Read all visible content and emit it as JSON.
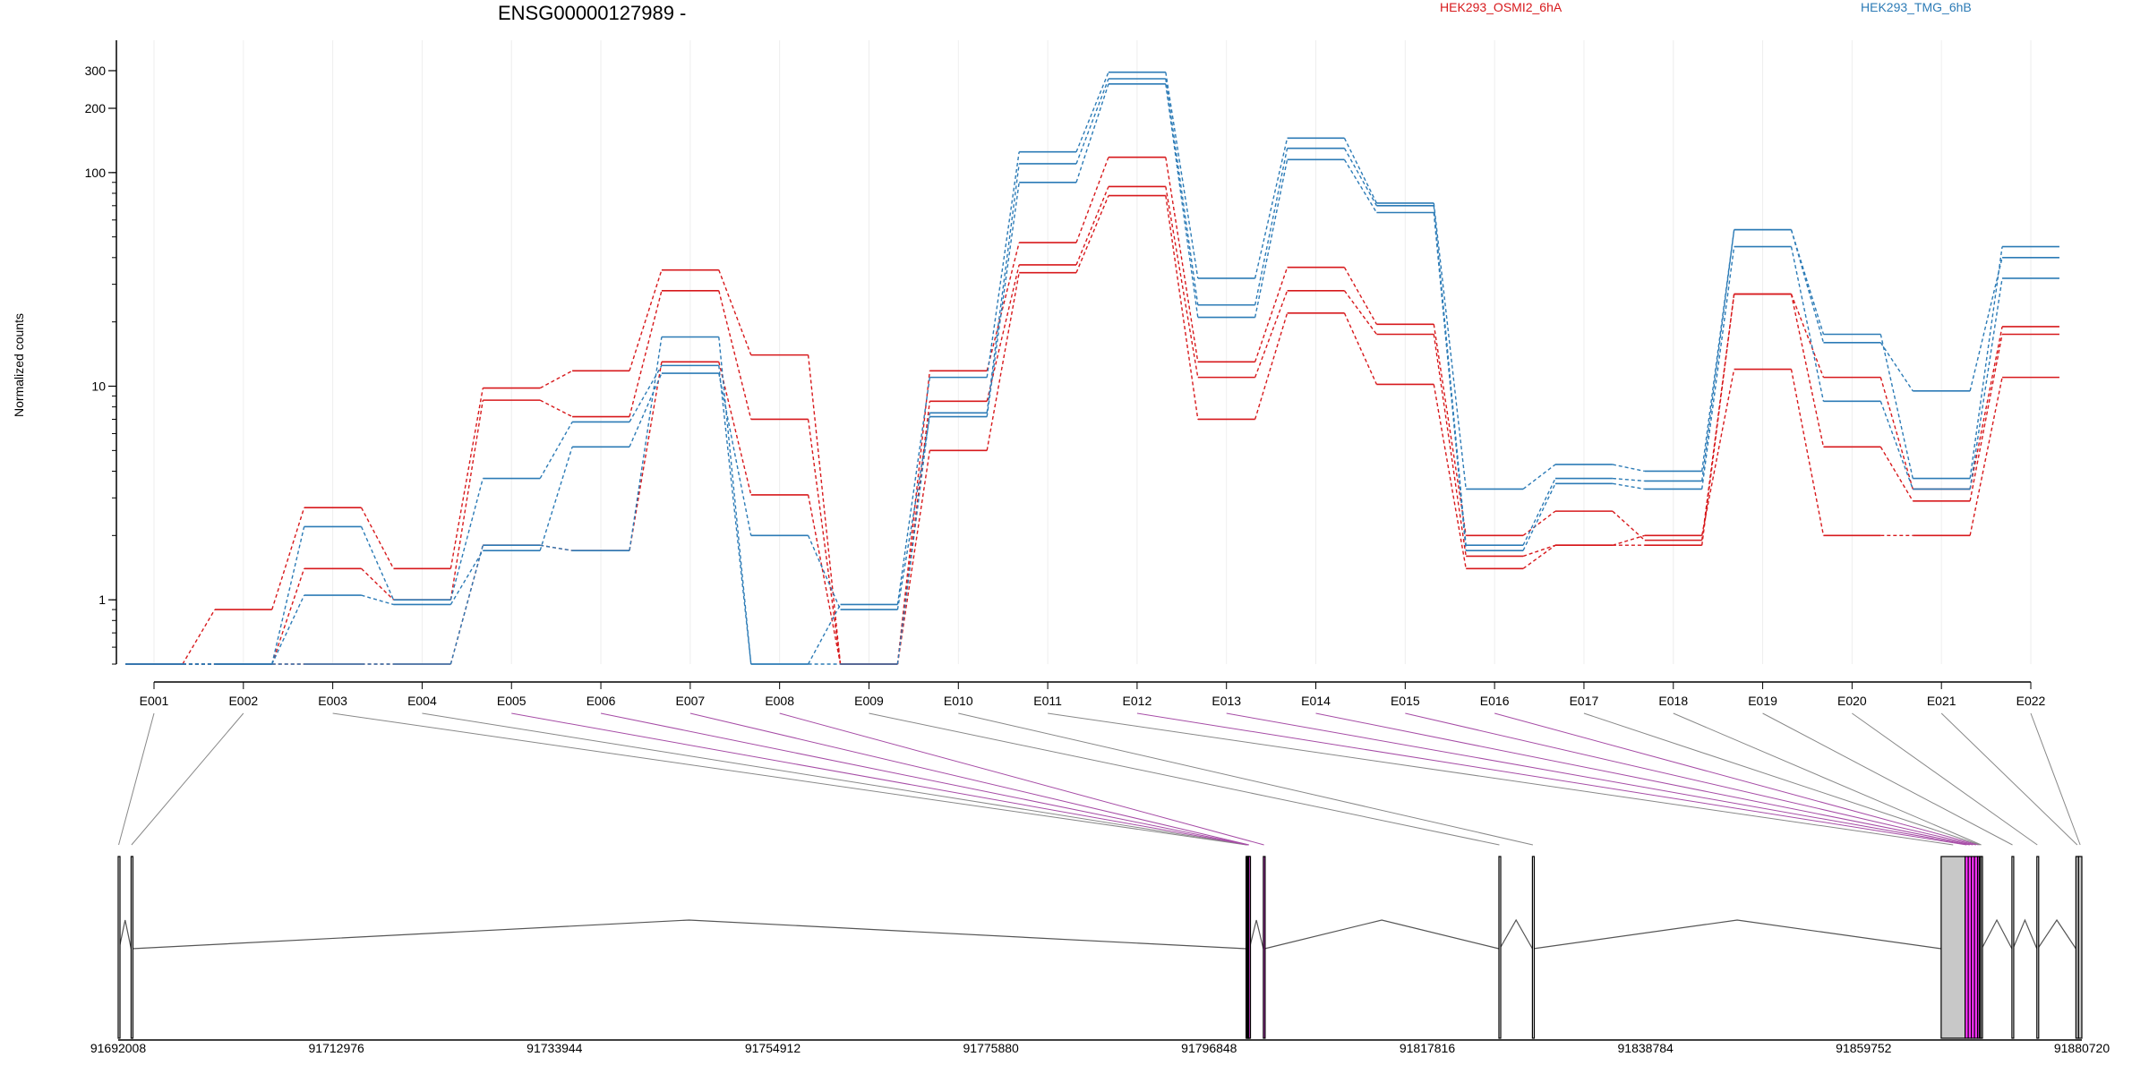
{
  "chart_data": {
    "type": "line",
    "title": "ENSG00000127989 -",
    "ylabel": "Normalized counts",
    "yscale": "log",
    "ylim": [
      0.5,
      350
    ],
    "yticks": [
      1,
      10,
      100,
      200,
      300
    ],
    "grid": "vertical",
    "legend_placement": "top-right",
    "categories": [
      "E001",
      "E002",
      "E003",
      "E004",
      "E005",
      "E006",
      "E007",
      "E008",
      "E009",
      "E010",
      "E011",
      "E012",
      "E013",
      "E014",
      "E015",
      "E016",
      "E017",
      "E018",
      "E019",
      "E020",
      "E021",
      "E022"
    ],
    "legend": [
      {
        "label": "HEK293_OSMI2_6hA",
        "color": "#d7191c"
      },
      {
        "label": "HEK293_TMG_6hB",
        "color": "#2c7bb6"
      }
    ],
    "series": [
      {
        "group": "HEK293_OSMI2_6hA",
        "color": "#d7191c",
        "values": [
          0.5,
          0.9,
          2.7,
          1.4,
          9.8,
          11.8,
          35,
          14,
          0.5,
          11.8,
          47,
          118,
          13,
          36,
          19.5,
          2.0,
          2.6,
          1.9,
          27,
          11,
          3.3,
          19
        ]
      },
      {
        "group": "HEK293_OSMI2_6hA",
        "color": "#d7191c",
        "values": [
          0.5,
          0.5,
          1.4,
          1.0,
          8.6,
          7.2,
          28,
          7.0,
          0.5,
          8.5,
          37,
          86,
          11,
          28,
          17.5,
          1.6,
          1.8,
          1.8,
          27,
          5.2,
          2.9,
          17.5
        ]
      },
      {
        "group": "HEK293_OSMI2_6hA",
        "color": "#d7191c",
        "values": [
          0.5,
          0.5,
          0.5,
          0.5,
          1.8,
          1.7,
          13,
          3.1,
          0.5,
          5.0,
          34,
          78,
          7.0,
          22,
          10.2,
          1.4,
          1.8,
          2.0,
          12,
          2.0,
          2.0,
          11
        ]
      },
      {
        "group": "HEK293_TMG_6hB",
        "color": "#2c7bb6",
        "values": [
          0.5,
          0.5,
          1.05,
          0.95,
          1.7,
          5.2,
          11.5,
          2.0,
          0.9,
          7.2,
          90,
          260,
          21,
          115,
          65,
          1.7,
          3.5,
          3.3,
          45,
          8.5,
          3.3,
          32
        ]
      },
      {
        "group": "HEK293_TMG_6hB",
        "color": "#2c7bb6",
        "values": [
          0.5,
          0.5,
          2.2,
          1.0,
          3.7,
          6.8,
          12.5,
          0.5,
          0.5,
          7.5,
          110,
          275,
          24,
          130,
          70,
          1.8,
          3.7,
          3.6,
          54,
          16,
          9.5,
          40
        ]
      },
      {
        "group": "HEK293_TMG_6hB",
        "color": "#2c7bb6",
        "values": [
          0.5,
          0.5,
          0.5,
          0.5,
          1.8,
          1.7,
          17,
          0.5,
          0.95,
          11,
          125,
          295,
          32,
          145,
          72,
          3.3,
          4.3,
          4.0,
          54,
          17.5,
          3.7,
          45
        ]
      }
    ],
    "genomic_axis": {
      "ticks": [
        "91692008",
        "91712976",
        "91733944",
        "91754912",
        "91775880",
        "91796848",
        "91817816",
        "91838784",
        "91859752",
        "91880720"
      ],
      "range": [
        91692008,
        91880720
      ]
    },
    "exon_map": {
      "exons": [
        {
          "id": "E001",
          "start": 91692008,
          "end": 91692100,
          "fill": "#ffffff",
          "highlight": false
        },
        {
          "id": "E002",
          "start": 91693250,
          "end": 91693330,
          "fill": "#ffffff",
          "highlight": false
        },
        {
          "id": "E003",
          "start": 91800400,
          "end": 91800470,
          "fill": "#000000",
          "highlight": false
        },
        {
          "id": "E004",
          "start": 91800470,
          "end": 91800530,
          "fill": "#000000",
          "highlight": false
        },
        {
          "id": "E005",
          "start": 91800530,
          "end": 91800590,
          "fill": "#d040d0",
          "highlight": true
        },
        {
          "id": "E006",
          "start": 91800590,
          "end": 91800650,
          "fill": "#d040d0",
          "highlight": true
        },
        {
          "id": "E007",
          "start": 91800650,
          "end": 91800720,
          "fill": "#d040d0",
          "highlight": true
        },
        {
          "id": "E008",
          "start": 91802060,
          "end": 91802180,
          "fill": "#d040d0",
          "highlight": true
        },
        {
          "id": "E009",
          "start": 91824700,
          "end": 91824780,
          "fill": "#ffffff",
          "highlight": false
        },
        {
          "id": "E010",
          "start": 91827920,
          "end": 91828000,
          "fill": "#ffffff",
          "highlight": false
        },
        {
          "id": "E011",
          "start": 91867200,
          "end": 91869500,
          "fill": "#c8c8c8",
          "highlight": false
        },
        {
          "id": "E012",
          "start": 91869500,
          "end": 91869800,
          "fill": "#ff33ff",
          "highlight": true
        },
        {
          "id": "E013",
          "start": 91869800,
          "end": 91870100,
          "fill": "#ff33ff",
          "highlight": true
        },
        {
          "id": "E014",
          "start": 91870100,
          "end": 91870400,
          "fill": "#ff33ff",
          "highlight": true
        },
        {
          "id": "E015",
          "start": 91870400,
          "end": 91870700,
          "fill": "#ff33ff",
          "highlight": true
        },
        {
          "id": "E016",
          "start": 91870700,
          "end": 91870880,
          "fill": "#cc33cc",
          "highlight": true
        },
        {
          "id": "E017",
          "start": 91870880,
          "end": 91871000,
          "fill": "#c8c8c8",
          "highlight": false
        },
        {
          "id": "E018",
          "start": 91871000,
          "end": 91871100,
          "fill": "#c8c8c8",
          "highlight": false
        },
        {
          "id": "E019",
          "start": 91874000,
          "end": 91874100,
          "fill": "#ffffff",
          "highlight": false
        },
        {
          "id": "E020",
          "start": 91876400,
          "end": 91876480,
          "fill": "#ffffff",
          "highlight": false
        },
        {
          "id": "E021",
          "start": 91880150,
          "end": 91880400,
          "fill": "#c8c8c8",
          "highlight": false
        },
        {
          "id": "E022",
          "start": 91880400,
          "end": 91880720,
          "fill": "#c8c8c8",
          "highlight": false
        }
      ]
    }
  }
}
